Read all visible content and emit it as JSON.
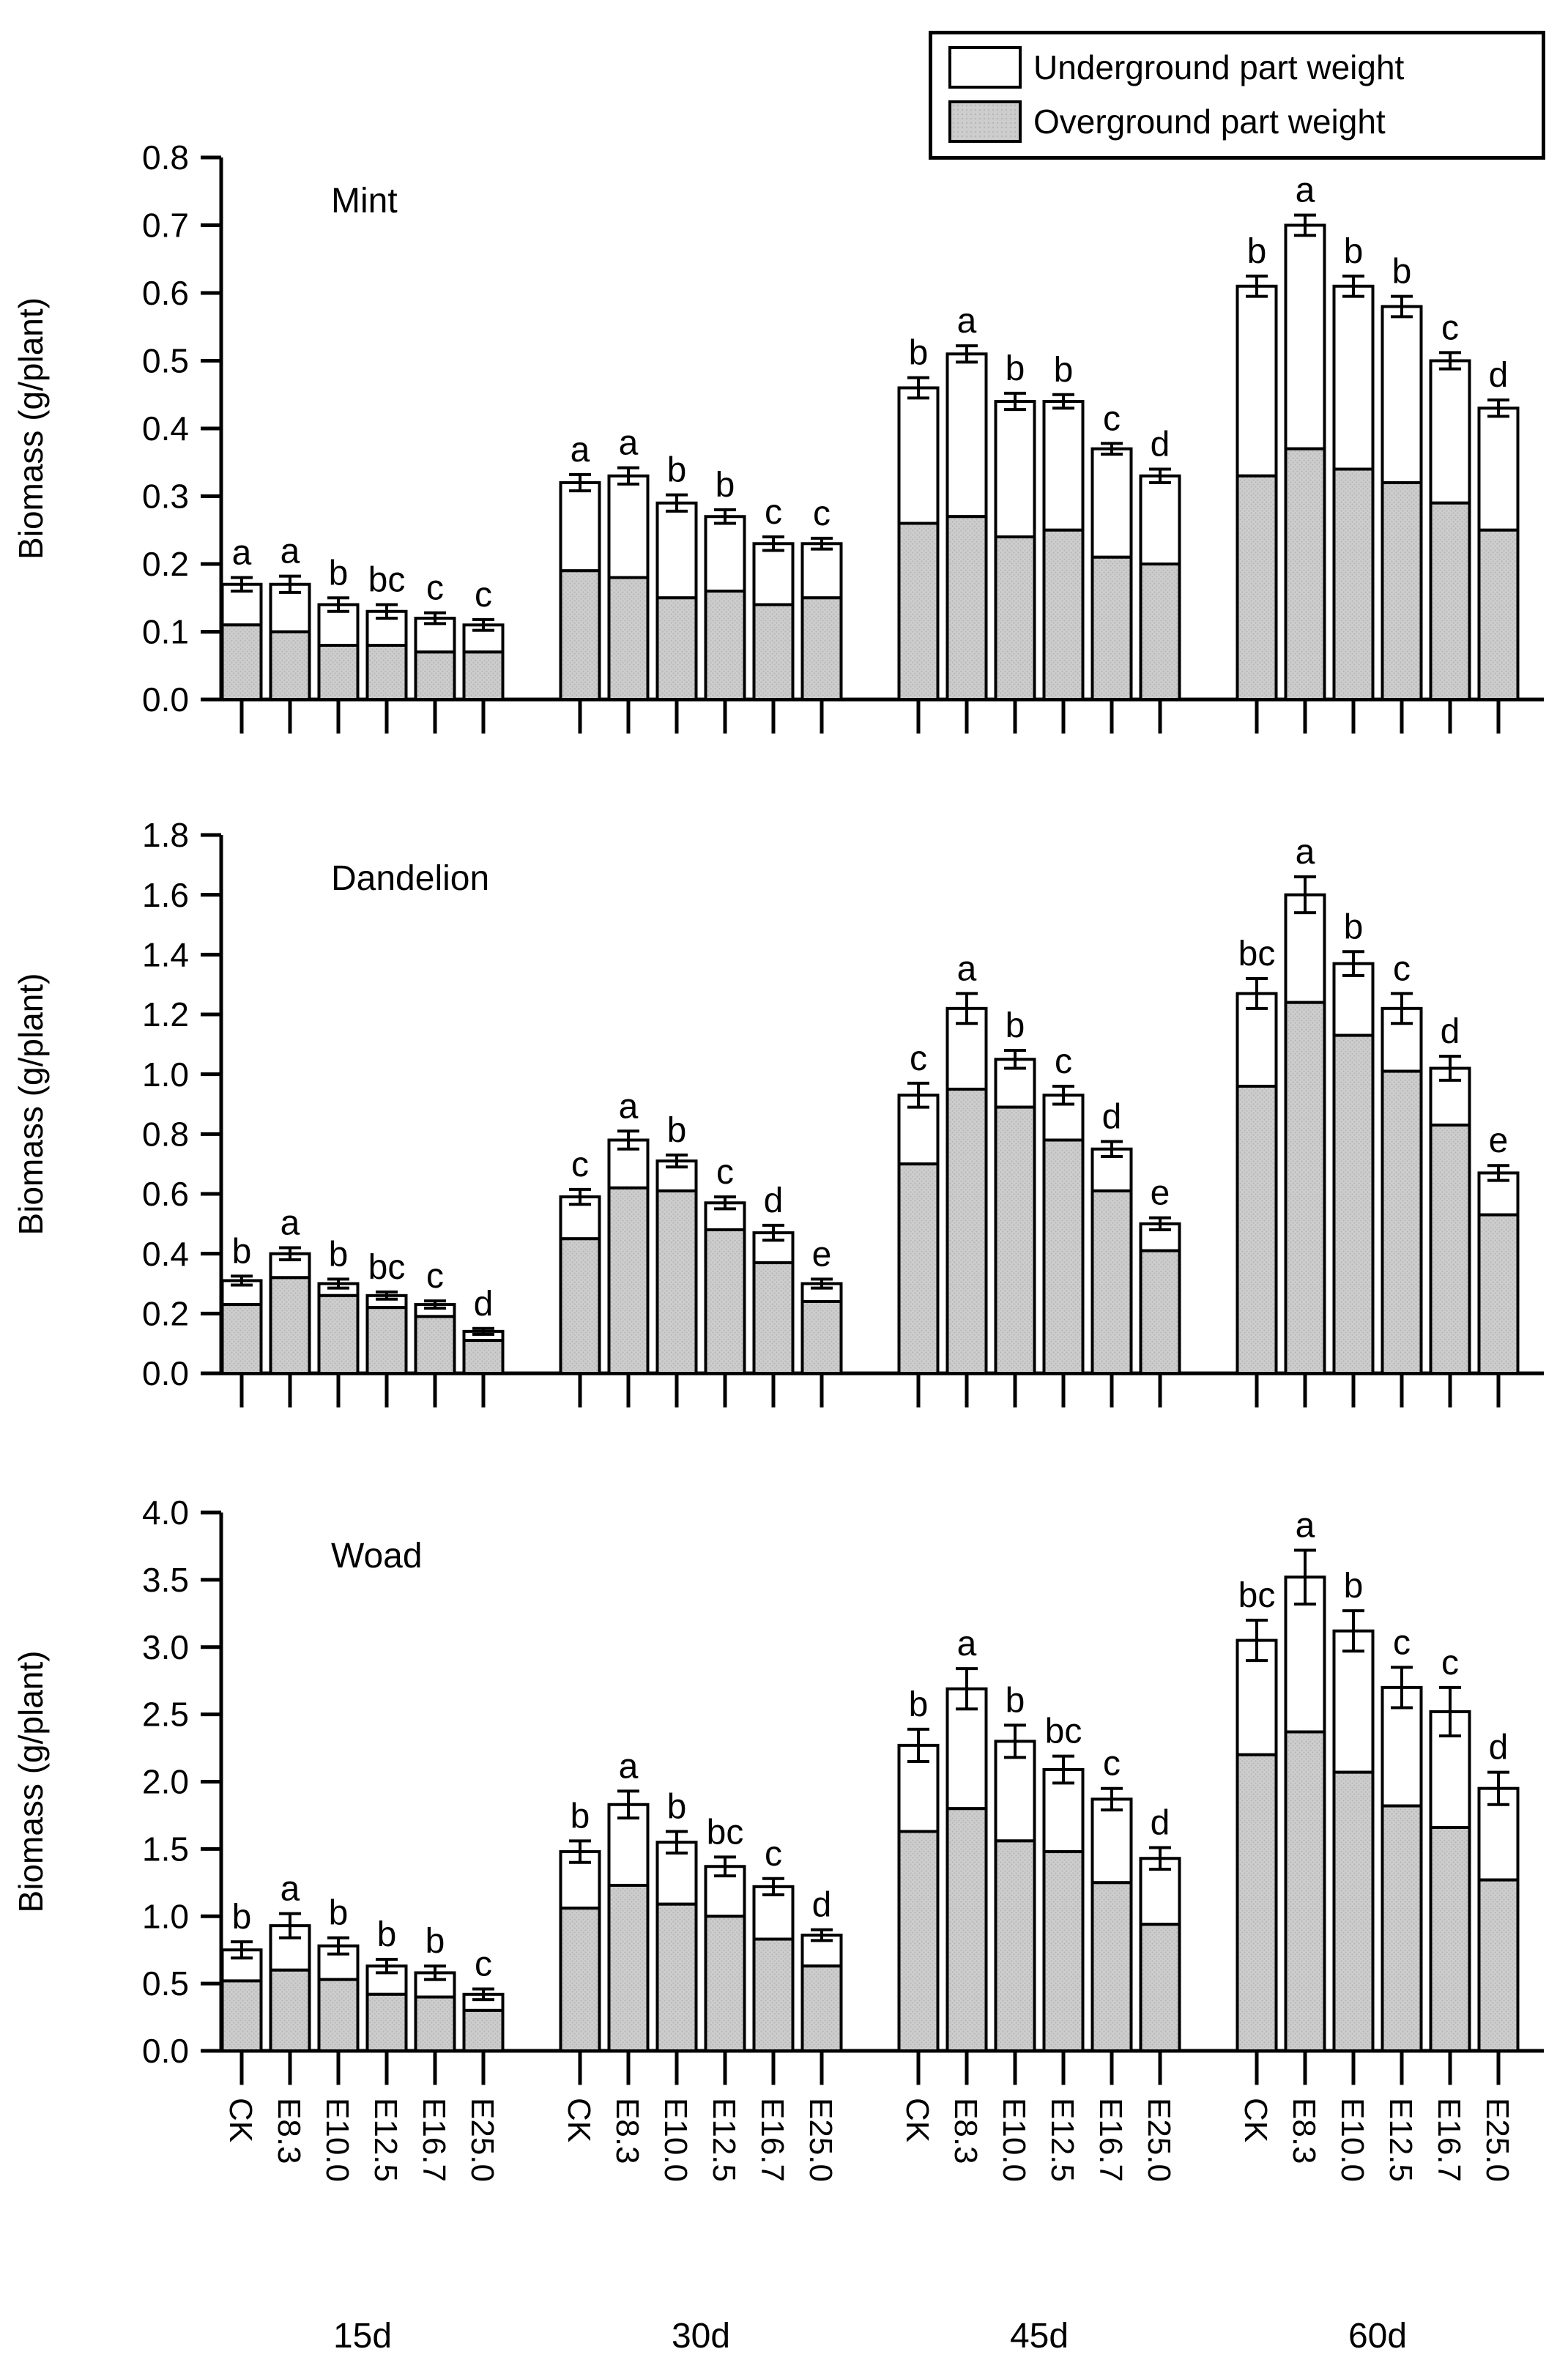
{
  "legend": {
    "items": [
      {
        "id": "underground",
        "label": "Underground part weight"
      },
      {
        "id": "overground",
        "label": "Overground part weight"
      }
    ]
  },
  "colors": {
    "underground_fill": "#ffffff",
    "overground_fill": "#cdcdcd",
    "overground_dot": "#b7b7b7",
    "stroke": "#000000"
  },
  "axis_labels": {
    "ylabel": "Biomass (g/plant)",
    "treatments": [
      "CK",
      "E8.3",
      "E10.0",
      "E12.5",
      "E16.7",
      "E25.0"
    ],
    "groups": [
      "15d",
      "30d",
      "45d",
      "60d"
    ]
  },
  "chart_data": [
    {
      "type": "bar",
      "stacked": true,
      "title": "Mint",
      "ylabel": "Biomass (g/plant)",
      "ylim": [
        0,
        0.8
      ],
      "ytick_step": 0.1,
      "ytick_decimals": 1,
      "grid": false,
      "legend_position": "top-right",
      "groups": [
        "15d",
        "30d",
        "45d",
        "60d"
      ],
      "categories": [
        "CK",
        "E8.3",
        "E10.0",
        "E12.5",
        "E16.7",
        "E25.0"
      ],
      "series": [
        {
          "name": "Overground part weight",
          "values": [
            [
              0.11,
              0.1,
              0.08,
              0.08,
              0.07,
              0.07
            ],
            [
              0.19,
              0.18,
              0.15,
              0.16,
              0.14,
              0.15
            ],
            [
              0.26,
              0.27,
              0.24,
              0.25,
              0.21,
              0.2
            ],
            [
              0.33,
              0.37,
              0.34,
              0.32,
              0.29,
              0.25
            ]
          ]
        },
        {
          "name": "Underground part weight",
          "values": [
            [
              0.06,
              0.07,
              0.06,
              0.05,
              0.05,
              0.04
            ],
            [
              0.13,
              0.15,
              0.14,
              0.11,
              0.09,
              0.08
            ],
            [
              0.2,
              0.24,
              0.2,
              0.19,
              0.16,
              0.13
            ],
            [
              0.28,
              0.33,
              0.27,
              0.26,
              0.21,
              0.18
            ]
          ]
        }
      ],
      "totals": [
        [
          0.17,
          0.17,
          0.14,
          0.13,
          0.12,
          0.11
        ],
        [
          0.32,
          0.33,
          0.29,
          0.27,
          0.23,
          0.23
        ],
        [
          0.46,
          0.51,
          0.44,
          0.44,
          0.37,
          0.33
        ],
        [
          0.61,
          0.7,
          0.61,
          0.58,
          0.5,
          0.43
        ]
      ],
      "errors": [
        [
          0.01,
          0.012,
          0.01,
          0.01,
          0.008,
          0.008
        ],
        [
          0.012,
          0.012,
          0.012,
          0.01,
          0.01,
          0.008
        ],
        [
          0.015,
          0.012,
          0.012,
          0.01,
          0.008,
          0.01
        ],
        [
          0.015,
          0.015,
          0.015,
          0.015,
          0.012,
          0.012
        ]
      ],
      "letters": [
        [
          "a",
          "a",
          "b",
          "bc",
          "c",
          "c"
        ],
        [
          "a",
          "a",
          "b",
          "b",
          "c",
          "c"
        ],
        [
          "b",
          "a",
          "b",
          "b",
          "c",
          "d"
        ],
        [
          "b",
          "a",
          "b",
          "b",
          "c",
          "d"
        ]
      ]
    },
    {
      "type": "bar",
      "stacked": true,
      "title": "Dandelion",
      "ylabel": "Biomass (g/plant)",
      "ylim": [
        0,
        1.8
      ],
      "ytick_step": 0.2,
      "ytick_decimals": 1,
      "grid": false,
      "groups": [
        "15d",
        "30d",
        "45d",
        "60d"
      ],
      "categories": [
        "CK",
        "E8.3",
        "E10.0",
        "E12.5",
        "E16.7",
        "E25.0"
      ],
      "series": [
        {
          "name": "Overground part weight",
          "values": [
            [
              0.23,
              0.32,
              0.26,
              0.22,
              0.19,
              0.11
            ],
            [
              0.45,
              0.62,
              0.61,
              0.48,
              0.37,
              0.24
            ],
            [
              0.7,
              0.95,
              0.89,
              0.78,
              0.61,
              0.41
            ],
            [
              0.96,
              1.24,
              1.13,
              1.01,
              0.83,
              0.53
            ]
          ]
        },
        {
          "name": "Underground part weight",
          "values": [
            [
              0.08,
              0.08,
              0.04,
              0.04,
              0.04,
              0.03
            ],
            [
              0.14,
              0.16,
              0.1,
              0.09,
              0.1,
              0.06
            ],
            [
              0.23,
              0.27,
              0.16,
              0.15,
              0.14,
              0.09
            ],
            [
              0.31,
              0.36,
              0.24,
              0.21,
              0.19,
              0.14
            ]
          ]
        }
      ],
      "totals": [
        [
          0.31,
          0.4,
          0.3,
          0.26,
          0.23,
          0.14
        ],
        [
          0.59,
          0.78,
          0.71,
          0.57,
          0.47,
          0.3
        ],
        [
          0.93,
          1.22,
          1.05,
          0.93,
          0.75,
          0.5
        ],
        [
          1.27,
          1.6,
          1.37,
          1.22,
          1.02,
          0.67
        ]
      ],
      "errors": [
        [
          0.015,
          0.02,
          0.015,
          0.012,
          0.012,
          0.01
        ],
        [
          0.025,
          0.03,
          0.02,
          0.02,
          0.025,
          0.015
        ],
        [
          0.04,
          0.05,
          0.03,
          0.03,
          0.025,
          0.02
        ],
        [
          0.05,
          0.06,
          0.04,
          0.05,
          0.04,
          0.025
        ]
      ],
      "letters": [
        [
          "b",
          "a",
          "b",
          "bc",
          "c",
          "d"
        ],
        [
          "c",
          "a",
          "b",
          "c",
          "d",
          "e"
        ],
        [
          "c",
          "a",
          "b",
          "c",
          "d",
          "e"
        ],
        [
          "bc",
          "a",
          "b",
          "c",
          "d",
          "e"
        ]
      ]
    },
    {
      "type": "bar",
      "stacked": true,
      "title": "Woad",
      "ylabel": "Biomass (g/plant)",
      "ylim": [
        0,
        4.0
      ],
      "ytick_step": 0.5,
      "ytick_decimals": 1,
      "grid": false,
      "groups": [
        "15d",
        "30d",
        "45d",
        "60d"
      ],
      "categories": [
        "CK",
        "E8.3",
        "E10.0",
        "E12.5",
        "E16.7",
        "E25.0"
      ],
      "series": [
        {
          "name": "Overground part weight",
          "values": [
            [
              0.52,
              0.6,
              0.53,
              0.42,
              0.4,
              0.3
            ],
            [
              1.06,
              1.23,
              1.09,
              1.0,
              0.83,
              0.63
            ],
            [
              1.63,
              1.8,
              1.56,
              1.48,
              1.25,
              0.94
            ],
            [
              2.2,
              2.37,
              2.07,
              1.82,
              1.66,
              1.27
            ]
          ]
        },
        {
          "name": "Underground part weight",
          "values": [
            [
              0.23,
              0.33,
              0.25,
              0.21,
              0.18,
              0.12
            ],
            [
              0.42,
              0.6,
              0.46,
              0.37,
              0.39,
              0.23
            ],
            [
              0.64,
              0.89,
              0.74,
              0.61,
              0.62,
              0.49
            ],
            [
              0.85,
              1.15,
              1.05,
              0.88,
              0.86,
              0.68
            ]
          ]
        }
      ],
      "totals": [
        [
          0.75,
          0.93,
          0.78,
          0.63,
          0.58,
          0.42
        ],
        [
          1.48,
          1.83,
          1.55,
          1.37,
          1.22,
          0.86
        ],
        [
          2.27,
          2.69,
          2.3,
          2.09,
          1.87,
          1.43
        ],
        [
          3.05,
          3.52,
          3.12,
          2.7,
          2.52,
          1.95
        ]
      ],
      "errors": [
        [
          0.06,
          0.09,
          0.06,
          0.05,
          0.05,
          0.04
        ],
        [
          0.08,
          0.1,
          0.08,
          0.07,
          0.06,
          0.04
        ],
        [
          0.12,
          0.15,
          0.12,
          0.1,
          0.08,
          0.08
        ],
        [
          0.15,
          0.2,
          0.15,
          0.15,
          0.18,
          0.12
        ]
      ],
      "letters": [
        [
          "b",
          "a",
          "b",
          "b",
          "b",
          "c"
        ],
        [
          "b",
          "a",
          "b",
          "bc",
          "c",
          "d"
        ],
        [
          "b",
          "a",
          "b",
          "bc",
          "c",
          "d"
        ],
        [
          "bc",
          "a",
          "b",
          "c",
          "c",
          "d"
        ]
      ]
    }
  ]
}
